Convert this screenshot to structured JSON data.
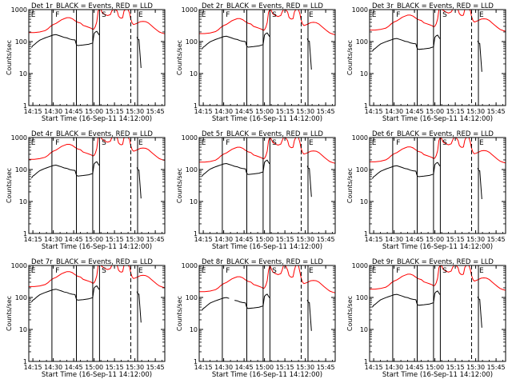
{
  "chart_data": {
    "type": "line",
    "figure_title": "",
    "x_axis": {
      "label": "Start Time (16-Sep-11 14:12:00)",
      "ticks": [
        "14:15",
        "14:30",
        "14:45",
        "15:00",
        "15:15",
        "15:30",
        "15:45"
      ],
      "tick_minutes": [
        3,
        18,
        33,
        48,
        63,
        78,
        93
      ],
      "range_minutes": [
        0,
        100
      ]
    },
    "y_axis": {
      "label": "Counts/sec",
      "scale": "log",
      "ticks": [
        "1",
        "10",
        "100",
        "1000"
      ],
      "tick_values": [
        1,
        10,
        100,
        1000
      ],
      "range": [
        1,
        1000
      ]
    },
    "region_labels": [
      {
        "text": "E",
        "x_minute": 1
      },
      {
        "text": "F",
        "x_minute": 19
      },
      {
        "text": "S",
        "x_minute": 53
      },
      {
        "text": "E",
        "x_minute": 80
      }
    ],
    "solid_markers_minutes": [
      17,
      35,
      47,
      52,
      80
    ],
    "dashed_markers_minutes": [
      75
    ],
    "colors": {
      "events": "#000000",
      "lld": "#ff0000"
    },
    "panels": [
      {
        "title": "Det 1r_BLACK = Events, RED = LLD",
        "black_offset": 0,
        "red_offset": 0,
        "gap": false
      },
      {
        "title": "Det 2r_BLACK = Events, RED = LLD",
        "black_offset": -0.05,
        "red_offset": -0.03,
        "gap": false
      },
      {
        "title": "Det 3r_BLACK = Events, RED = LLD",
        "black_offset": -0.12,
        "red_offset": 0.08,
        "gap": false
      },
      {
        "title": "Det 4r_BLACK = Events, RED = LLD",
        "black_offset": -0.08,
        "red_offset": 0.04,
        "gap": false
      },
      {
        "title": "Det 5r_BLACK = Events, RED = LLD",
        "black_offset": -0.03,
        "red_offset": -0.05,
        "gap": false
      },
      {
        "title": "Det 6r_BLACK = Events, RED = LLD",
        "black_offset": -0.1,
        "red_offset": -0.04,
        "gap": false
      },
      {
        "title": "Det 7r_BLACK = Events, RED = LLD",
        "black_offset": 0.04,
        "red_offset": 0.06,
        "gap": false
      },
      {
        "title": "Det 8r_BLACK = Events, RED = LLD",
        "black_offset": -0.22,
        "red_offset": -0.1,
        "gap": true
      },
      {
        "title": "Det 9r_BLACK = Events, RED = LLD",
        "black_offset": -0.12,
        "red_offset": -0.02,
        "gap": false
      }
    ],
    "series": [
      {
        "name": "Events",
        "points": [
          [
            2,
            65
          ],
          [
            3,
            75
          ],
          [
            4,
            80
          ],
          [
            6,
            95
          ],
          [
            8,
            110
          ],
          [
            10,
            120
          ],
          [
            12,
            130
          ],
          [
            14,
            140
          ],
          [
            16,
            150
          ],
          [
            18,
            160
          ],
          [
            20,
            165
          ],
          [
            22,
            155
          ],
          [
            24,
            145
          ],
          [
            26,
            135
          ],
          [
            28,
            130
          ],
          [
            30,
            120
          ],
          [
            32,
            115
          ],
          [
            34,
            112
          ],
          [
            35,
            80
          ],
          [
            36,
            75
          ],
          [
            40,
            78
          ],
          [
            44,
            82
          ],
          [
            47,
            90
          ],
          [
            48,
            180
          ],
          [
            49,
            200
          ],
          [
            50,
            210
          ],
          [
            51,
            180
          ],
          [
            51.8,
            160
          ]
        ],
        "after_segment": [
          [
            79.5,
            140
          ],
          [
            80,
            120
          ],
          [
            81,
            115
          ],
          [
            82.5,
            15
          ]
        ]
      },
      {
        "name": "LLD",
        "points": [
          [
            0,
            190
          ],
          [
            4,
            190
          ],
          [
            8,
            200
          ],
          [
            12,
            220
          ],
          [
            14,
            250
          ],
          [
            16,
            300
          ],
          [
            18,
            340
          ],
          [
            20,
            370
          ],
          [
            22,
            420
          ],
          [
            24,
            480
          ],
          [
            26,
            520
          ],
          [
            28,
            560
          ],
          [
            30,
            560
          ],
          [
            32,
            520
          ],
          [
            34,
            450
          ],
          [
            36,
            400
          ],
          [
            38,
            380
          ],
          [
            40,
            320
          ],
          [
            42,
            300
          ],
          [
            44,
            280
          ],
          [
            46,
            260
          ],
          [
            47,
            240
          ],
          [
            48,
            250
          ],
          [
            49,
            300
          ],
          [
            50,
            420
          ],
          [
            51,
            900
          ],
          [
            52,
            1400
          ],
          [
            53,
            1000
          ],
          [
            54,
            800
          ],
          [
            56,
            700
          ],
          [
            58,
            650
          ],
          [
            60,
            700
          ],
          [
            61,
            900
          ],
          [
            62,
            1500
          ],
          [
            63.5,
            1500
          ],
          [
            65,
            900
          ],
          [
            66,
            620
          ],
          [
            67,
            560
          ],
          [
            68,
            540
          ],
          [
            69,
            560
          ],
          [
            70,
            900
          ],
          [
            71,
            1500
          ],
          [
            73,
            1500
          ],
          [
            74,
            800
          ],
          [
            75,
            500
          ],
          [
            76,
            380
          ],
          [
            77,
            340
          ],
          [
            78,
            350
          ],
          [
            80,
            380
          ],
          [
            82,
            420
          ],
          [
            84,
            430
          ],
          [
            86,
            420
          ],
          [
            88,
            380
          ],
          [
            90,
            320
          ],
          [
            92,
            270
          ],
          [
            94,
            230
          ],
          [
            96,
            200
          ],
          [
            98,
            185
          ],
          [
            100,
            175
          ]
        ]
      }
    ],
    "legend": "none",
    "grid": false
  }
}
